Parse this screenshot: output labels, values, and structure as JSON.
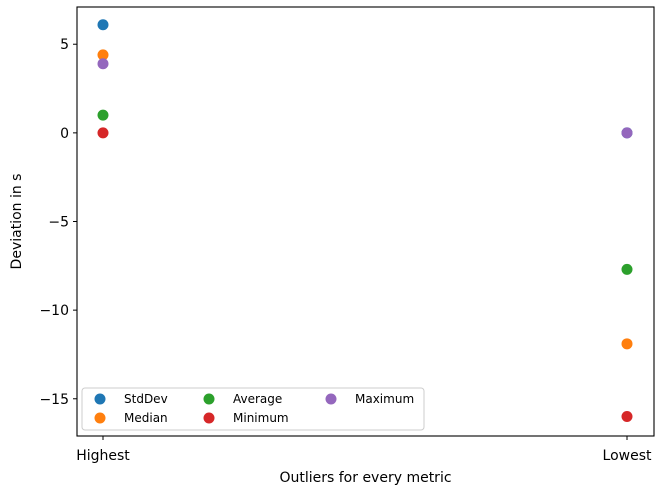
{
  "chart_data": {
    "type": "scatter",
    "title": "",
    "xlabel": "Outliers for every metric",
    "ylabel": "Deviation in s",
    "categories": [
      "Highest",
      "Lowest"
    ],
    "ylim": [
      -17.1,
      7.1
    ],
    "yticks": [
      {
        "value": 5,
        "label": "5"
      },
      {
        "value": 0,
        "label": "0"
      },
      {
        "value": -5,
        "label": "−5"
      },
      {
        "value": -10,
        "label": "−10"
      },
      {
        "value": -15,
        "label": "−15"
      }
    ],
    "grid": false,
    "legend_position": "lower-left",
    "series": [
      {
        "name": "StdDev",
        "color": "#1f77b4",
        "values": [
          6.1,
          0.0
        ]
      },
      {
        "name": "Median",
        "color": "#ff7f0e",
        "values": [
          4.4,
          -11.9
        ]
      },
      {
        "name": "Average",
        "color": "#2ca02c",
        "values": [
          1.0,
          -7.7
        ]
      },
      {
        "name": "Minimum",
        "color": "#d62728",
        "values": [
          0.0,
          -16.0
        ]
      },
      {
        "name": "Maximum",
        "color": "#9467bd",
        "values": [
          3.9,
          0.0
        ]
      }
    ],
    "legend_order": [
      0,
      1,
      2,
      3,
      4
    ]
  }
}
